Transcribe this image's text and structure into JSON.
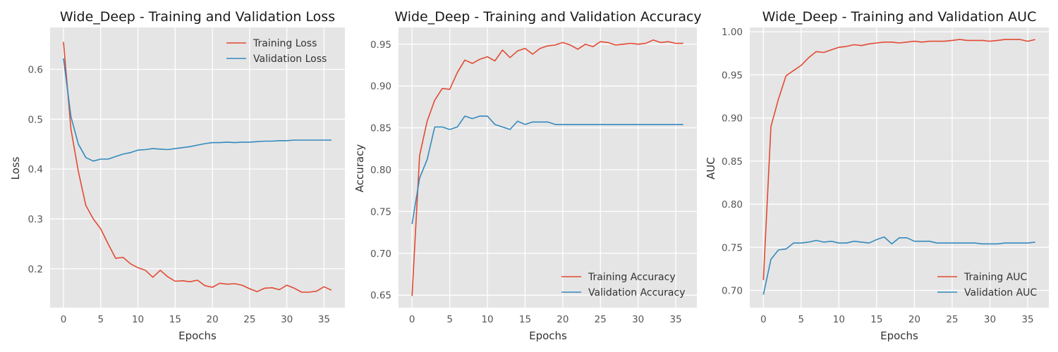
{
  "colors": {
    "red": "#E24A33",
    "blue": "#348ABD",
    "panel_bg": "#E5E5E5",
    "grid": "#FFFFFF"
  },
  "chart_data": [
    {
      "type": "line",
      "title": "Wide_Deep - Training and Validation Loss",
      "xlabel": "Epochs",
      "ylabel": "Loss",
      "xlim": [
        -1.8,
        37.8
      ],
      "ylim": [
        0.122,
        0.684
      ],
      "xticks": [
        0,
        5,
        10,
        15,
        20,
        25,
        30,
        35
      ],
      "yticks": [
        0.2,
        0.3,
        0.4,
        0.5,
        0.6
      ],
      "ytick_labels": [
        "0.2",
        "0.3",
        "0.4",
        "0.5",
        "0.6"
      ],
      "grid": true,
      "legend_position": "top-right",
      "x": [
        0,
        1,
        2,
        3,
        4,
        5,
        6,
        7,
        8,
        9,
        10,
        11,
        12,
        13,
        14,
        15,
        16,
        17,
        18,
        19,
        20,
        21,
        22,
        23,
        24,
        25,
        26,
        27,
        28,
        29,
        30,
        31,
        32,
        33,
        34,
        35,
        36
      ],
      "series": [
        {
          "name": "Training Loss",
          "color": "#E24A33",
          "values": [
            0.655,
            0.48,
            0.395,
            0.327,
            0.3,
            0.28,
            0.25,
            0.221,
            0.223,
            0.21,
            0.202,
            0.197,
            0.183,
            0.197,
            0.184,
            0.175,
            0.176,
            0.174,
            0.177,
            0.166,
            0.163,
            0.171,
            0.169,
            0.17,
            0.167,
            0.16,
            0.154,
            0.161,
            0.162,
            0.158,
            0.167,
            0.161,
            0.153,
            0.153,
            0.155,
            0.164,
            0.157
          ]
        },
        {
          "name": "Validation Loss",
          "color": "#348ABD",
          "values": [
            0.622,
            0.505,
            0.45,
            0.423,
            0.416,
            0.42,
            0.42,
            0.425,
            0.43,
            0.433,
            0.438,
            0.439,
            0.441,
            0.44,
            0.439,
            0.441,
            0.443,
            0.445,
            0.448,
            0.451,
            0.453,
            0.453,
            0.454,
            0.453,
            0.454,
            0.454,
            0.455,
            0.456,
            0.456,
            0.457,
            0.457,
            0.458,
            0.458,
            0.458,
            0.458,
            0.458,
            0.458
          ]
        }
      ]
    },
    {
      "type": "line",
      "title": "Wide_Deep - Training and Validation Accuracy",
      "xlabel": "Epochs",
      "ylabel": "Accuracy",
      "xlim": [
        -1.8,
        37.8
      ],
      "ylim": [
        0.635,
        0.97
      ],
      "xticks": [
        0,
        5,
        10,
        15,
        20,
        25,
        30,
        35
      ],
      "yticks": [
        0.65,
        0.7,
        0.75,
        0.8,
        0.85,
        0.9,
        0.95
      ],
      "ytick_labels": [
        "0.65",
        "0.70",
        "0.75",
        "0.80",
        "0.85",
        "0.90",
        "0.95"
      ],
      "grid": true,
      "legend_position": "bottom-right",
      "x": [
        0,
        1,
        2,
        3,
        4,
        5,
        6,
        7,
        8,
        9,
        10,
        11,
        12,
        13,
        14,
        15,
        16,
        17,
        18,
        19,
        20,
        21,
        22,
        23,
        24,
        25,
        26,
        27,
        28,
        29,
        30,
        31,
        32,
        33,
        34,
        35,
        36
      ],
      "series": [
        {
          "name": "Training Accuracy",
          "color": "#E24A33",
          "values": [
            0.649,
            0.817,
            0.858,
            0.883,
            0.897,
            0.896,
            0.916,
            0.931,
            0.927,
            0.932,
            0.935,
            0.93,
            0.943,
            0.934,
            0.942,
            0.945,
            0.938,
            0.945,
            0.948,
            0.949,
            0.952,
            0.949,
            0.944,
            0.95,
            0.947,
            0.953,
            0.952,
            0.949,
            0.95,
            0.951,
            0.95,
            0.951,
            0.955,
            0.952,
            0.953,
            0.951,
            0.951
          ]
        },
        {
          "name": "Validation Accuracy",
          "color": "#348ABD",
          "values": [
            0.735,
            0.79,
            0.812,
            0.851,
            0.851,
            0.848,
            0.851,
            0.864,
            0.861,
            0.864,
            0.864,
            0.854,
            0.851,
            0.848,
            0.858,
            0.854,
            0.857,
            0.857,
            0.857,
            0.854,
            0.854,
            0.854,
            0.854,
            0.854,
            0.854,
            0.854,
            0.854,
            0.854,
            0.854,
            0.854,
            0.854,
            0.854,
            0.854,
            0.854,
            0.854,
            0.854,
            0.854
          ]
        }
      ]
    },
    {
      "type": "line",
      "title": "Wide_Deep - Training and Validation AUC",
      "xlabel": "Epochs",
      "ylabel": "AUC",
      "xlim": [
        -1.8,
        37.8
      ],
      "ylim": [
        0.68,
        1.005
      ],
      "xticks": [
        0,
        5,
        10,
        15,
        20,
        25,
        30,
        35
      ],
      "yticks": [
        0.7,
        0.75,
        0.8,
        0.85,
        0.9,
        0.95,
        1.0
      ],
      "ytick_labels": [
        "0.70",
        "0.75",
        "0.80",
        "0.85",
        "0.90",
        "0.95",
        "1.00"
      ],
      "grid": true,
      "legend_position": "bottom-right",
      "x": [
        0,
        1,
        2,
        3,
        4,
        5,
        6,
        7,
        8,
        9,
        10,
        11,
        12,
        13,
        14,
        15,
        16,
        17,
        18,
        19,
        20,
        21,
        22,
        23,
        24,
        25,
        26,
        27,
        28,
        29,
        30,
        31,
        32,
        33,
        34,
        35,
        36
      ],
      "series": [
        {
          "name": "Training AUC",
          "color": "#E24A33",
          "values": [
            0.712,
            0.89,
            0.922,
            0.949,
            0.955,
            0.961,
            0.97,
            0.977,
            0.976,
            0.979,
            0.982,
            0.983,
            0.985,
            0.984,
            0.986,
            0.987,
            0.988,
            0.988,
            0.987,
            0.988,
            0.989,
            0.988,
            0.989,
            0.989,
            0.989,
            0.99,
            0.991,
            0.99,
            0.99,
            0.99,
            0.989,
            0.99,
            0.991,
            0.991,
            0.991,
            0.989,
            0.991
          ]
        },
        {
          "name": "Validation AUC",
          "color": "#348ABD",
          "values": [
            0.695,
            0.736,
            0.747,
            0.748,
            0.755,
            0.755,
            0.756,
            0.758,
            0.756,
            0.757,
            0.755,
            0.755,
            0.757,
            0.756,
            0.755,
            0.759,
            0.762,
            0.754,
            0.761,
            0.761,
            0.757,
            0.757,
            0.757,
            0.755,
            0.755,
            0.755,
            0.755,
            0.755,
            0.755,
            0.754,
            0.754,
            0.754,
            0.755,
            0.755,
            0.755,
            0.755,
            0.756
          ]
        }
      ]
    }
  ]
}
